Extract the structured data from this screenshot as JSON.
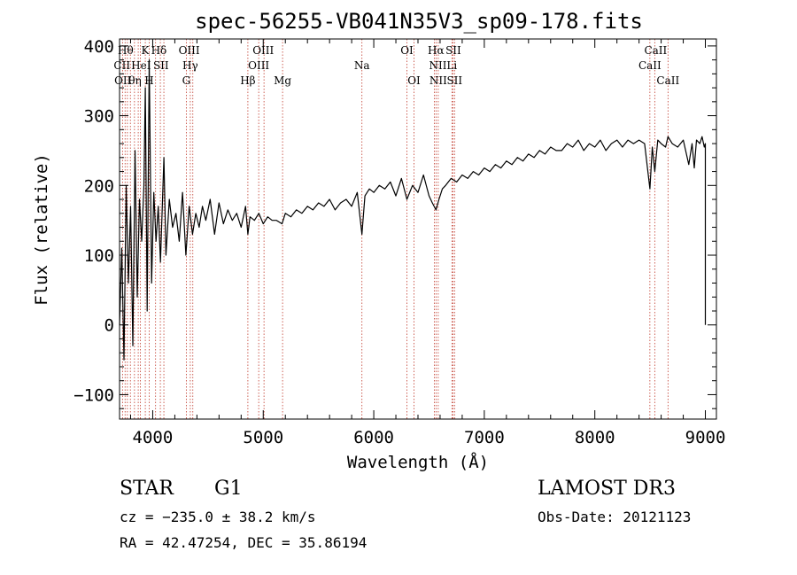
{
  "chart_data": {
    "type": "line",
    "title": "spec-56255-VB041N35V3_sp09-178.fits",
    "xlabel": "Wavelength (Å)",
    "ylabel": "Flux (relative)",
    "xlim": [
      3700,
      9100
    ],
    "ylim": [
      -135,
      410
    ],
    "x_ticks": [
      4000,
      5000,
      6000,
      7000,
      8000,
      9000
    ],
    "y_ticks": [
      -100,
      0,
      100,
      200,
      300,
      400
    ],
    "grid": false,
    "series": [
      {
        "name": "flux",
        "x": [
          3700,
          3720,
          3740,
          3760,
          3780,
          3800,
          3820,
          3840,
          3860,
          3880,
          3900,
          3920,
          3933,
          3950,
          3968,
          3990,
          4010,
          4030,
          4050,
          4070,
          4101,
          4120,
          4150,
          4180,
          4210,
          4240,
          4270,
          4300,
          4330,
          4360,
          4390,
          4420,
          4450,
          4480,
          4520,
          4560,
          4600,
          4640,
          4680,
          4720,
          4760,
          4800,
          4840,
          4861,
          4880,
          4920,
          4960,
          5000,
          5040,
          5080,
          5120,
          5170,
          5200,
          5250,
          5300,
          5350,
          5400,
          5450,
          5500,
          5550,
          5600,
          5650,
          5700,
          5750,
          5800,
          5850,
          5893,
          5920,
          5960,
          6000,
          6050,
          6100,
          6150,
          6200,
          6250,
          6300,
          6350,
          6400,
          6450,
          6500,
          6530,
          6563,
          6590,
          6620,
          6650,
          6700,
          6750,
          6800,
          6850,
          6900,
          6950,
          7000,
          7050,
          7100,
          7150,
          7200,
          7250,
          7300,
          7350,
          7400,
          7450,
          7500,
          7550,
          7600,
          7650,
          7700,
          7750,
          7800,
          7850,
          7900,
          7950,
          8000,
          8050,
          8100,
          8150,
          8200,
          8250,
          8300,
          8350,
          8400,
          8450,
          8498,
          8520,
          8542,
          8570,
          8600,
          8640,
          8662,
          8700,
          8750,
          8800,
          8850,
          8880,
          8900,
          8920,
          8950,
          8970,
          8990,
          9000,
          9000
        ],
        "values": [
          0,
          110,
          -50,
          200,
          60,
          170,
          -30,
          250,
          40,
          180,
          120,
          200,
          340,
          20,
          380,
          60,
          190,
          120,
          170,
          90,
          240,
          100,
          180,
          140,
          160,
          120,
          190,
          100,
          170,
          130,
          160,
          140,
          170,
          150,
          180,
          130,
          175,
          145,
          165,
          150,
          160,
          140,
          170,
          130,
          155,
          150,
          160,
          145,
          155,
          150,
          150,
          145,
          160,
          155,
          165,
          160,
          170,
          165,
          175,
          170,
          180,
          165,
          175,
          180,
          170,
          190,
          130,
          185,
          195,
          190,
          200,
          195,
          205,
          185,
          210,
          180,
          200,
          190,
          215,
          185,
          175,
          165,
          180,
          195,
          200,
          210,
          205,
          215,
          210,
          220,
          215,
          225,
          220,
          230,
          225,
          235,
          230,
          240,
          235,
          245,
          240,
          250,
          245,
          255,
          250,
          250,
          260,
          255,
          265,
          250,
          260,
          255,
          265,
          250,
          260,
          265,
          255,
          265,
          260,
          265,
          260,
          195,
          255,
          220,
          265,
          260,
          255,
          270,
          260,
          255,
          265,
          230,
          260,
          225,
          265,
          260,
          270,
          255,
          260,
          0
        ]
      }
    ],
    "reference_lines": [
      {
        "x": 3727
      },
      {
        "x": 3750
      },
      {
        "x": 3771
      },
      {
        "x": 3798
      },
      {
        "x": 3835
      },
      {
        "x": 3869
      },
      {
        "x": 3889
      },
      {
        "x": 3933
      },
      {
        "x": 3968
      },
      {
        "x": 4026
      },
      {
        "x": 4069
      },
      {
        "x": 4101
      },
      {
        "x": 4304
      },
      {
        "x": 4340
      },
      {
        "x": 4363
      },
      {
        "x": 4861
      },
      {
        "x": 4959
      },
      {
        "x": 5007
      },
      {
        "x": 5175
      },
      {
        "x": 5893
      },
      {
        "x": 6300
      },
      {
        "x": 6364
      },
      {
        "x": 6548
      },
      {
        "x": 6563
      },
      {
        "x": 6583
      },
      {
        "x": 6707
      },
      {
        "x": 6717
      },
      {
        "x": 6731
      },
      {
        "x": 8498
      },
      {
        "x": 8542
      },
      {
        "x": 8662
      }
    ],
    "annotations": [
      {
        "text": "Hθ",
        "x": 3755,
        "row": 0
      },
      {
        "text": "K",
        "x": 3932,
        "row": 0
      },
      {
        "text": "Hδ",
        "x": 4056,
        "row": 0
      },
      {
        "text": "OIII",
        "x": 4330,
        "row": 0
      },
      {
        "text": "OIII",
        "x": 5000,
        "row": 0
      },
      {
        "text": "OI",
        "x": 6300,
        "row": 0
      },
      {
        "text": "Hα",
        "x": 6563,
        "row": 0
      },
      {
        "text": "SII",
        "x": 6720,
        "row": 0
      },
      {
        "text": "CaII",
        "x": 8550,
        "row": 0
      },
      {
        "text": "CII",
        "x": 3722,
        "row": 1
      },
      {
        "text": "HeI",
        "x": 3895,
        "row": 1
      },
      {
        "text": "SII",
        "x": 4075,
        "row": 1
      },
      {
        "text": "Hγ",
        "x": 4340,
        "row": 1
      },
      {
        "text": "OIII",
        "x": 4959,
        "row": 1
      },
      {
        "text": "Na",
        "x": 5893,
        "row": 1
      },
      {
        "text": "NII",
        "x": 6580,
        "row": 1
      },
      {
        "text": "Li",
        "x": 6707,
        "row": 1
      },
      {
        "text": "CaII",
        "x": 8498,
        "row": 1
      },
      {
        "text": "OII",
        "x": 3730,
        "row": 2
      },
      {
        "text": "θη",
        "x": 3840,
        "row": 2
      },
      {
        "text": "H",
        "x": 3968,
        "row": 2
      },
      {
        "text": "G",
        "x": 4304,
        "row": 2
      },
      {
        "text": "Hβ",
        "x": 4861,
        "row": 2
      },
      {
        "text": "Mg",
        "x": 5175,
        "row": 2
      },
      {
        "text": "OI",
        "x": 6364,
        "row": 2
      },
      {
        "text": "NII",
        "x": 6583,
        "row": 2
      },
      {
        "text": "SII",
        "x": 6731,
        "row": 2
      },
      {
        "text": "CaII",
        "x": 8662,
        "row": 2
      }
    ]
  },
  "info": {
    "object_class": "STAR",
    "subclass": "G1",
    "survey": "LAMOST DR3",
    "redshift": "cz = −235.0 ± 38.2 km/s",
    "obs_date": "Obs-Date: 20121123",
    "coords": "RA =  42.47254, DEC =  35.86194"
  },
  "colors": {
    "line_markers": "#c0392b",
    "spectrum": "#000000"
  }
}
